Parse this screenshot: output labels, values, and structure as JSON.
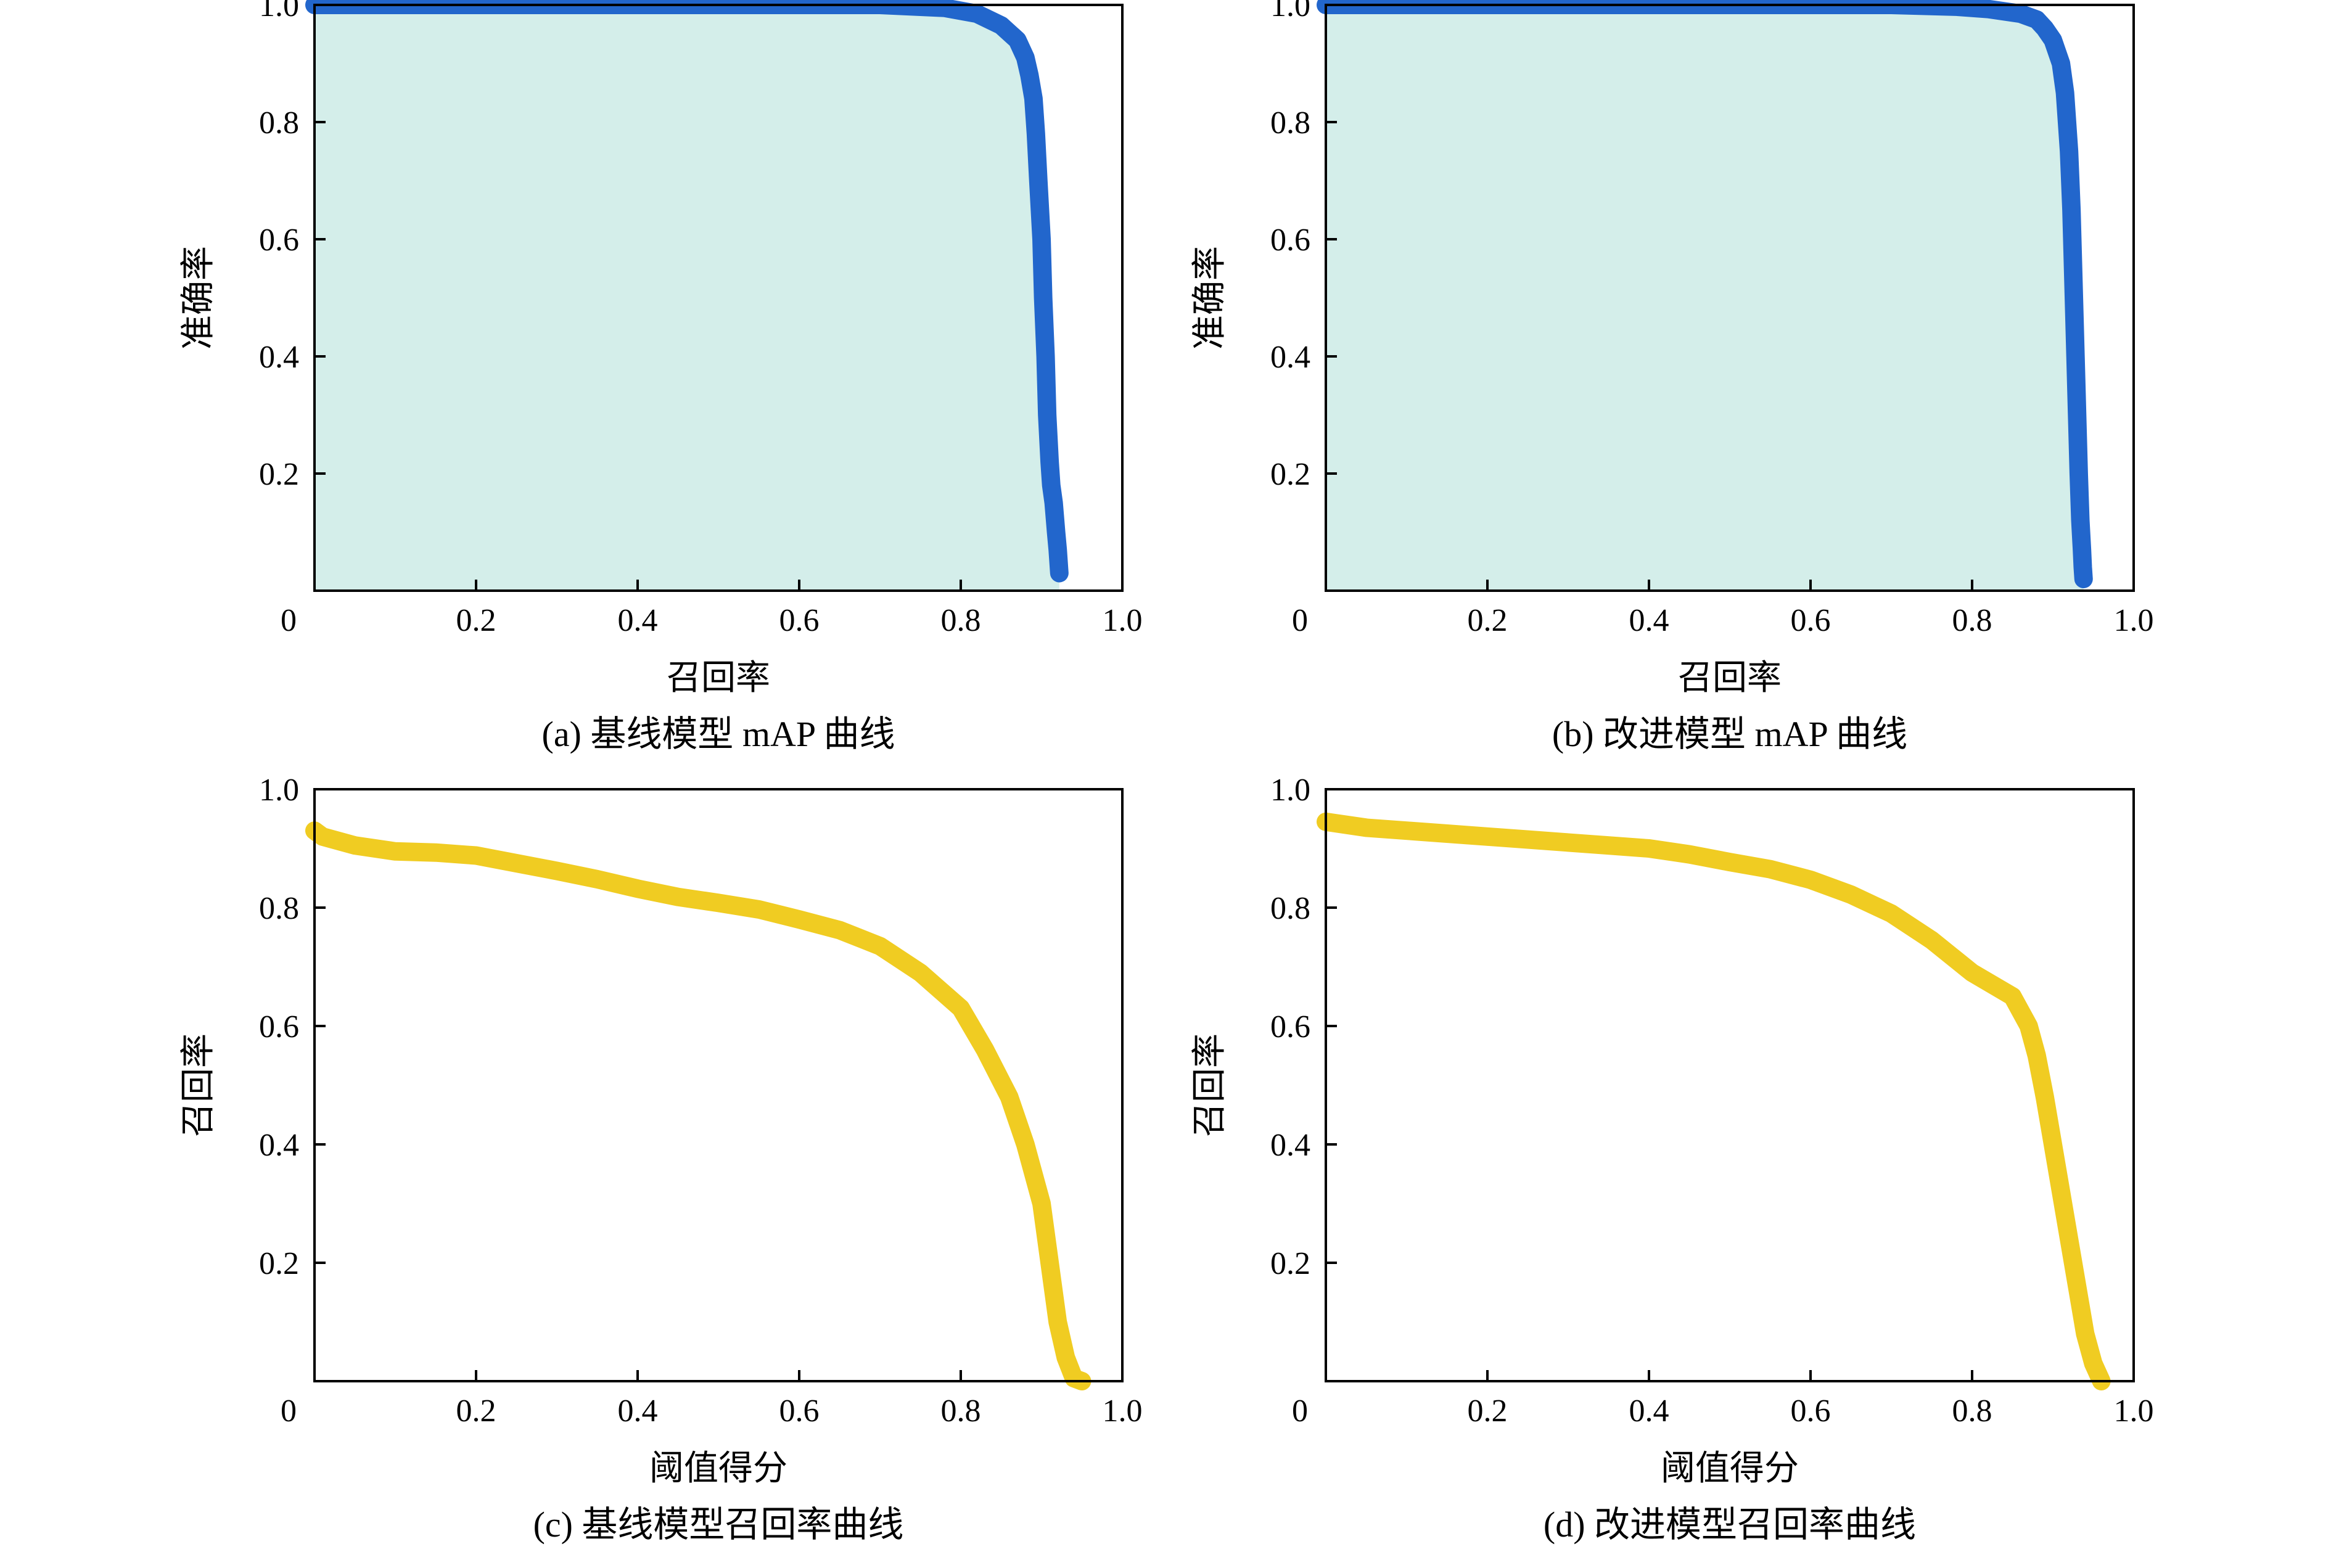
{
  "chart_data": [
    {
      "id": "a",
      "type": "area",
      "caption": "(a) 基线模型 mAP 曲线",
      "xlabel": "召回率",
      "ylabel": "准确率",
      "xlim": [
        0,
        1.0
      ],
      "ylim": [
        0,
        1.0
      ],
      "xticks": [
        "0",
        "0.2",
        "0.4",
        "0.6",
        "0.8",
        "1.0"
      ],
      "yticks": [
        "0.2",
        "0.4",
        "0.6",
        "0.8",
        "1.0"
      ],
      "line_color": "#2266cc",
      "fill_color": "#d4eeea",
      "x": [
        0.0,
        0.1,
        0.2,
        0.3,
        0.4,
        0.5,
        0.6,
        0.7,
        0.78,
        0.82,
        0.85,
        0.87,
        0.88,
        0.885,
        0.89,
        0.893,
        0.896,
        0.9,
        0.902,
        0.905,
        0.907,
        0.91,
        0.912,
        0.915,
        0.918,
        0.92,
        0.922
      ],
      "y": [
        1.0,
        1.0,
        1.0,
        1.0,
        1.0,
        1.0,
        1.0,
        1.0,
        0.995,
        0.985,
        0.965,
        0.94,
        0.91,
        0.88,
        0.84,
        0.78,
        0.7,
        0.6,
        0.5,
        0.4,
        0.3,
        0.22,
        0.18,
        0.15,
        0.1,
        0.07,
        0.03
      ],
      "grid": false
    },
    {
      "id": "b",
      "type": "area",
      "caption": "(b) 改进模型 mAP 曲线",
      "xlabel": "召回率",
      "ylabel": "准确率",
      "xlim": [
        0,
        1.0
      ],
      "ylim": [
        0,
        1.0
      ],
      "xticks": [
        "0",
        "0.2",
        "0.4",
        "0.6",
        "0.8",
        "1.0"
      ],
      "yticks": [
        "0.2",
        "0.4",
        "0.6",
        "0.8",
        "1.0"
      ],
      "line_color": "#2266cc",
      "fill_color": "#d4eeea",
      "x": [
        0.0,
        0.1,
        0.2,
        0.3,
        0.4,
        0.5,
        0.6,
        0.7,
        0.78,
        0.82,
        0.86,
        0.88,
        0.89,
        0.9,
        0.91,
        0.915,
        0.92,
        0.923,
        0.926,
        0.928,
        0.93,
        0.932,
        0.934,
        0.936,
        0.937,
        0.938
      ],
      "y": [
        1.0,
        1.0,
        1.0,
        1.0,
        1.0,
        1.0,
        1.0,
        1.0,
        0.997,
        0.993,
        0.985,
        0.975,
        0.96,
        0.94,
        0.9,
        0.85,
        0.75,
        0.65,
        0.5,
        0.4,
        0.3,
        0.2,
        0.12,
        0.07,
        0.04,
        0.02
      ],
      "grid": false
    },
    {
      "id": "c",
      "type": "line",
      "caption": "(c) 基线模型召回率曲线",
      "xlabel": "阈值得分",
      "ylabel": "召回率",
      "xlim": [
        0,
        1.0
      ],
      "ylim": [
        0,
        1.0
      ],
      "xticks": [
        "0",
        "0.2",
        "0.4",
        "0.6",
        "0.8",
        "1.0"
      ],
      "yticks": [
        "0.2",
        "0.4",
        "0.6",
        "0.8",
        "1.0"
      ],
      "line_color": "#f0cc22",
      "x": [
        0.0,
        0.01,
        0.05,
        0.1,
        0.15,
        0.2,
        0.25,
        0.3,
        0.35,
        0.4,
        0.45,
        0.5,
        0.55,
        0.6,
        0.65,
        0.7,
        0.75,
        0.8,
        0.83,
        0.86,
        0.88,
        0.9,
        0.91,
        0.92,
        0.93,
        0.94,
        0.95
      ],
      "y": [
        0.93,
        0.92,
        0.905,
        0.895,
        0.893,
        0.888,
        0.875,
        0.862,
        0.848,
        0.832,
        0.818,
        0.808,
        0.797,
        0.78,
        0.762,
        0.735,
        0.69,
        0.63,
        0.56,
        0.48,
        0.4,
        0.3,
        0.2,
        0.1,
        0.04,
        0.005,
        0.0
      ],
      "grid": false
    },
    {
      "id": "d",
      "type": "line",
      "caption": "(d) 改进模型召回率曲线",
      "xlabel": "阈值得分",
      "ylabel": "召回率",
      "xlim": [
        0,
        1.0
      ],
      "ylim": [
        0,
        1.0
      ],
      "xticks": [
        "0",
        "0.2",
        "0.4",
        "0.6",
        "0.8",
        "1.0"
      ],
      "yticks": [
        "0.2",
        "0.4",
        "0.6",
        "0.8",
        "1.0"
      ],
      "line_color": "#f0cc22",
      "x": [
        0.0,
        0.05,
        0.1,
        0.15,
        0.2,
        0.25,
        0.3,
        0.35,
        0.4,
        0.45,
        0.5,
        0.55,
        0.6,
        0.65,
        0.7,
        0.75,
        0.8,
        0.85,
        0.87,
        0.88,
        0.89,
        0.9,
        0.91,
        0.92,
        0.93,
        0.94,
        0.95,
        0.96
      ],
      "y": [
        0.945,
        0.935,
        0.93,
        0.925,
        0.92,
        0.915,
        0.91,
        0.905,
        0.9,
        0.89,
        0.877,
        0.865,
        0.847,
        0.822,
        0.79,
        0.745,
        0.69,
        0.65,
        0.6,
        0.55,
        0.48,
        0.4,
        0.32,
        0.24,
        0.16,
        0.08,
        0.03,
        0.0
      ],
      "grid": false
    }
  ]
}
